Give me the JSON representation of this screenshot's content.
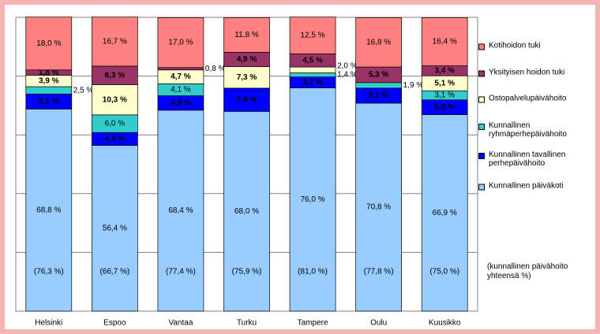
{
  "chart_data": {
    "type": "stacked-bar-percent",
    "categories": [
      "Helsinki",
      "Espoo",
      "Vantaa",
      "Turku",
      "Tampere",
      "Oulu",
      "Kuusikko"
    ],
    "ylim": [
      0,
      100
    ],
    "yticks": [
      0,
      20,
      40,
      60,
      80,
      100
    ],
    "grid": true,
    "series": [
      {
        "name": "Kunnallinen päiväkoti",
        "color": "#99ccff",
        "values": [
          68.8,
          56.4,
          68.4,
          68.0,
          76.0,
          70.8,
          66.9
        ],
        "value_labels": [
          "68,8 %",
          "56,4 %",
          "68,4 %",
          "68,0 %",
          "76,0 %",
          "70,8 %",
          "66,9 %"
        ]
      },
      {
        "name": "Kunnallinen tavallinen perhepäivähoito",
        "color": "#0000ff",
        "values": [
          5.1,
          4.4,
          4.9,
          7.9,
          3.7,
          5.1,
          5.0
        ],
        "value_labels": [
          "5,1 %",
          "4,4 %",
          "4,9 %",
          "7,9 %",
          "3,7 %",
          "5,1 %",
          "5,0 %"
        ]
      },
      {
        "name": "Kunnallinen ryhmäperhepäivähoito",
        "color": "#33cccc",
        "values": [
          2.5,
          6.0,
          4.1,
          null,
          1.4,
          1.9,
          3.1
        ],
        "value_labels": [
          "2,5 %",
          "6,0 %",
          "4,1 %",
          null,
          "1,4 %",
          "1,9 %",
          "3,1 %"
        ]
      },
      {
        "name": "Ostopalvelupäivähoito",
        "color": "#ffffcc",
        "values": [
          3.9,
          10.3,
          4.7,
          7.3,
          2.0,
          null,
          5.1
        ],
        "value_labels": [
          "3,9 %",
          "10,3 %",
          "4,7 %",
          "7,3 %",
          "2,0 %",
          null,
          "5,1 %"
        ]
      },
      {
        "name": "Yksityisen hoidon tuki",
        "color": "#993366",
        "values": [
          1.8,
          6.3,
          0.8,
          4.9,
          4.5,
          5.3,
          3.4
        ],
        "value_labels": [
          "1,8 %",
          "6,3 %",
          "0,8 %",
          "4,9 %",
          "4,5 %",
          "5,3 %",
          "3,4 %"
        ]
      },
      {
        "name": "Kotihoidon tuki",
        "color": "#ff8080",
        "values": [
          18.0,
          16.7,
          17.0,
          11.8,
          12.5,
          16.8,
          16.4
        ],
        "value_labels": [
          "18,0 %",
          "16,7 %",
          "17,0 %",
          "11,8 %",
          "12,5 %",
          "16,8 %",
          "16,4 %"
        ]
      }
    ],
    "totals": {
      "label": "(kunnallinen päivähoito yhteensä %)",
      "values": [
        76.3,
        66.7,
        77.4,
        75.9,
        81.0,
        77.8,
        75.0
      ],
      "value_labels": [
        "(76,3 %)",
        "(66,7 %)",
        "(77,4 %)",
        "(75,9 %)",
        "(81,0 %)",
        "(77,8 %)",
        "(75,0 %)"
      ]
    }
  }
}
